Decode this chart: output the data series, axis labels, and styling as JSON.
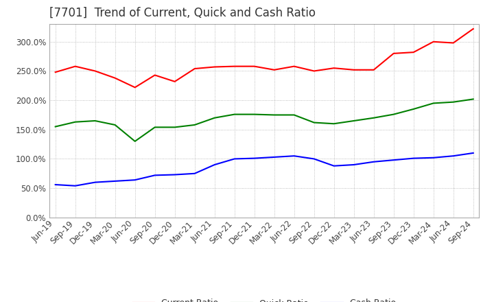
{
  "title": "[7701]  Trend of Current, Quick and Cash Ratio",
  "x_labels": [
    "Jun-19",
    "Sep-19",
    "Dec-19",
    "Mar-20",
    "Jun-20",
    "Sep-20",
    "Dec-20",
    "Mar-21",
    "Jun-21",
    "Sep-21",
    "Dec-21",
    "Mar-22",
    "Jun-22",
    "Sep-22",
    "Dec-22",
    "Mar-23",
    "Jun-23",
    "Sep-23",
    "Dec-23",
    "Mar-24",
    "Jun-24",
    "Sep-24"
  ],
  "current_ratio": [
    248,
    258,
    250,
    238,
    222,
    243,
    232,
    254,
    257,
    258,
    258,
    252,
    258,
    250,
    255,
    252,
    252,
    280,
    282,
    300,
    298,
    322
  ],
  "quick_ratio": [
    155,
    163,
    165,
    158,
    130,
    154,
    154,
    158,
    170,
    176,
    176,
    175,
    175,
    162,
    160,
    165,
    170,
    176,
    185,
    195,
    197,
    202
  ],
  "cash_ratio": [
    56,
    54,
    60,
    62,
    64,
    72,
    73,
    75,
    90,
    100,
    101,
    103,
    105,
    100,
    88,
    90,
    95,
    98,
    101,
    102,
    105,
    110
  ],
  "current_color": "#FF0000",
  "quick_color": "#008000",
  "cash_color": "#0000FF",
  "ylim": [
    0,
    330
  ],
  "yticks": [
    0,
    50,
    100,
    150,
    200,
    250,
    300
  ],
  "background_color": "#ffffff",
  "title_fontsize": 12,
  "axis_fontsize": 8.5,
  "grid_color": "#aaaaaa",
  "border_color": "#aaaaaa"
}
